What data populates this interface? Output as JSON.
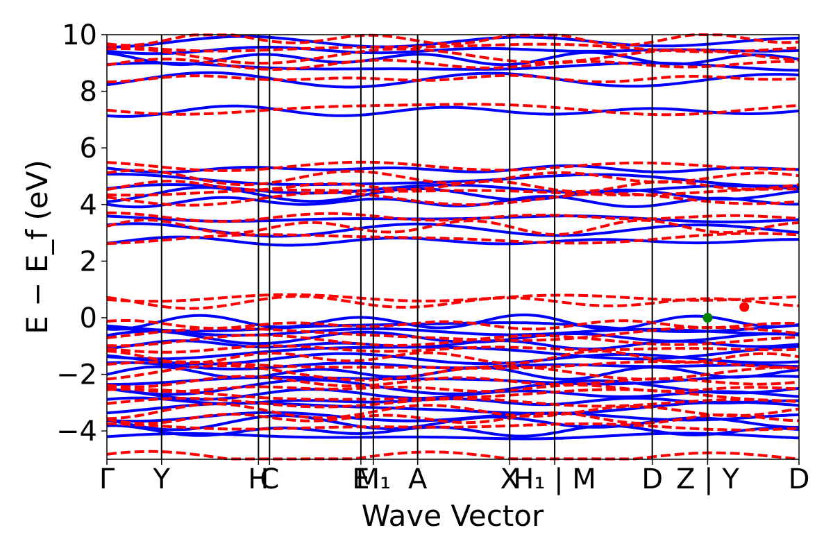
{
  "chart_data": {
    "type": "line",
    "title": "",
    "xlabel": "Wave Vector",
    "ylabel": "E − E_f (eV)",
    "ylim": [
      -5,
      10
    ],
    "yticks": [
      -4,
      -2,
      0,
      2,
      4,
      6,
      8,
      10
    ],
    "ytick_labels": [
      "−4",
      "−2",
      "0",
      "2",
      "4",
      "6",
      "8",
      "10"
    ],
    "k_path_labels": [
      {
        "x": 0.0,
        "label": "Γ"
      },
      {
        "x": 0.079,
        "label": "Y"
      },
      {
        "x": 0.219,
        "label": "H"
      },
      {
        "x": 0.235,
        "label": "C"
      },
      {
        "x": 0.367,
        "label": "E"
      },
      {
        "x": 0.385,
        "label": "M₁"
      },
      {
        "x": 0.449,
        "label": "A"
      },
      {
        "x": 0.582,
        "label": "X"
      },
      {
        "x": 0.647,
        "label": "H₁ | M"
      },
      {
        "x": 0.788,
        "label": "D"
      },
      {
        "x": 0.868,
        "label": "Z | Y"
      },
      {
        "x": 1.0,
        "label": "D"
      }
    ],
    "grid": false,
    "legend": "none",
    "series": [
      {
        "style": "solid",
        "color": "#0000ff",
        "band_levels": [
          -4.2,
          -4.0,
          -3.7,
          -3.5,
          -3.2,
          -2.95,
          -2.7,
          -2.45,
          -2.2,
          -1.95,
          -1.7,
          -1.45,
          -1.2,
          -0.95,
          -0.7,
          -0.5,
          -0.3,
          -0.15,
          2.7,
          3.1,
          3.5,
          4.1,
          4.35,
          4.55,
          4.85,
          5.25,
          7.3,
          8.4,
          8.85,
          9.15,
          9.45,
          9.75
        ]
      },
      {
        "style": "dashed",
        "color": "#ff0000",
        "band_levels": [
          -4.95,
          -3.85,
          -3.55,
          -3.3,
          -3.0,
          -2.75,
          -2.5,
          -2.25,
          -1.95,
          -1.7,
          -1.4,
          -1.1,
          -0.8,
          -0.6,
          -0.25,
          0.55,
          0.7,
          2.8,
          3.2,
          3.55,
          4.2,
          4.45,
          4.65,
          4.95,
          5.35,
          7.4,
          8.45,
          8.95,
          9.25,
          9.55,
          9.85
        ]
      }
    ],
    "markers": [
      {
        "x": 0.868,
        "y": 0.0,
        "color": "#008000"
      },
      {
        "x": 0.921,
        "y": 0.38,
        "color": "#ff0000"
      }
    ]
  }
}
